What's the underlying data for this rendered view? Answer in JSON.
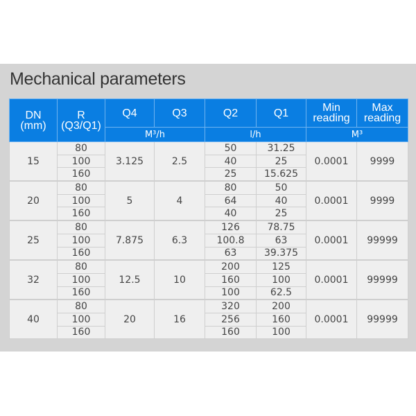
{
  "title": "Mechanical parameters",
  "header": {
    "dn": "DN",
    "dn_unit": "(mm)",
    "r": "R",
    "r_sub": "(Q3/Q1)",
    "q4": "Q4",
    "q3": "Q3",
    "q2": "Q2",
    "q1": "Q1",
    "min": "Min reading",
    "max": "Max reading",
    "unit_q43": "M³/h",
    "unit_q21": "l/h",
    "unit_reading": "M³"
  },
  "colors": {
    "header_bg": "#0a7ee2",
    "cell_bg": "#efefef",
    "panel_bg": "#d4d4d4"
  },
  "groups": [
    {
      "dn": "15",
      "r": [
        "80",
        "100",
        "160"
      ],
      "q4": "3.125",
      "q3": "2.5",
      "q2": [
        "50",
        "40",
        "25"
      ],
      "q1": [
        "31.25",
        "25",
        "15.625"
      ],
      "min": "0.0001",
      "max": "9999"
    },
    {
      "dn": "20",
      "r": [
        "80",
        "100",
        "160"
      ],
      "q4": "5",
      "q3": "4",
      "q2": [
        "80",
        "64",
        "40"
      ],
      "q1": [
        "50",
        "40",
        "25"
      ],
      "min": "0.0001",
      "max": "9999"
    },
    {
      "dn": "25",
      "r": [
        "80",
        "100",
        "160"
      ],
      "q4": "7.875",
      "q3": "6.3",
      "q2": [
        "126",
        "100.8",
        "63"
      ],
      "q1": [
        "78.75",
        "63",
        "39.375"
      ],
      "min": "0.0001",
      "max": "99999"
    },
    {
      "dn": "32",
      "r": [
        "80",
        "100",
        "160"
      ],
      "q4": "12.5",
      "q3": "10",
      "q2": [
        "200",
        "160",
        "100"
      ],
      "q1": [
        "125",
        "100",
        "62.5"
      ],
      "min": "0.0001",
      "max": "99999"
    },
    {
      "dn": "40",
      "r": [
        "80",
        "100",
        "160"
      ],
      "q4": "20",
      "q3": "16",
      "q2": [
        "320",
        "256",
        "160"
      ],
      "q1": [
        "200",
        "160",
        "100"
      ],
      "min": "0.0001",
      "max": "99999"
    }
  ]
}
